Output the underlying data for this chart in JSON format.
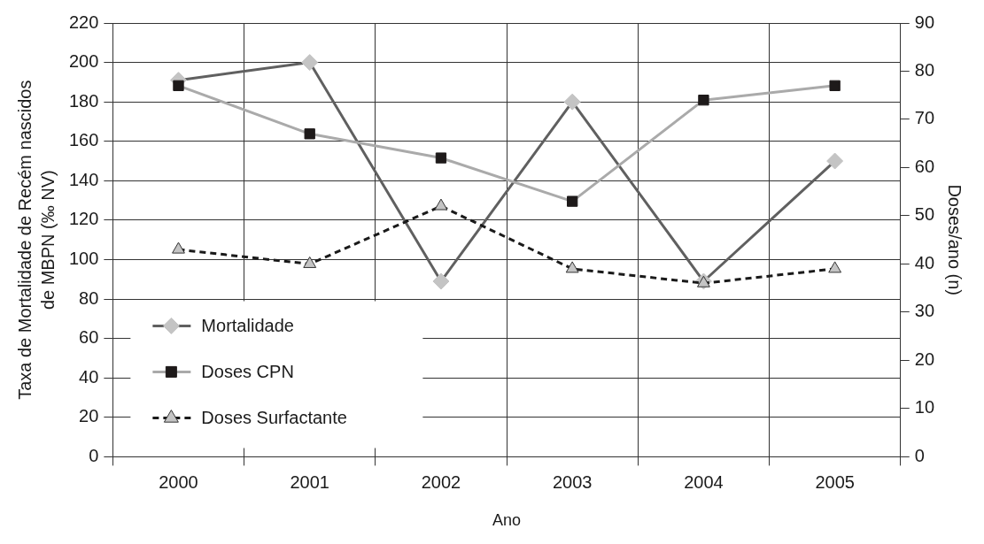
{
  "chart_data": {
    "type": "line",
    "xlabel": "Ano",
    "ylabel": "Taxa de Mortalidade de Recém nascidos\nde MBPN (‰ NV)",
    "y2label": "Doses/ano (n)",
    "categories": [
      "2000",
      "2001",
      "2002",
      "2003",
      "2004",
      "2005"
    ],
    "series": [
      {
        "name": "Mortalidade",
        "color": "#606060",
        "colors": [
          "#c4c4c4",
          "#c4c4c4",
          "#c4c4c4",
          "#c4c4c4",
          "#c4c4c4",
          "#c4c4c4"
        ],
        "marker": "diamond",
        "line_style": "solid",
        "values": [
          191,
          200,
          89,
          180,
          89,
          150
        ]
      },
      {
        "name": "Doses CPN",
        "color": "#aaaaaa",
        "colors": [
          "#1e1a1a",
          "#1e1a1a",
          "#1e1a1a",
          "#1e1a1a",
          "#1e1a1a",
          "#1e1a1a"
        ],
        "marker": "square",
        "line_style": "solid",
        "axis": "y2",
        "values": [
          77,
          67,
          62,
          53,
          74,
          77
        ]
      },
      {
        "name": "Doses Surfactante",
        "color": "#1a1a1a",
        "colors": [
          "#c4c4c4",
          "#c4c4c4",
          "#c4c4c4",
          "#c4c4c4",
          "#c4c4c4",
          "#c4c4c4"
        ],
        "marker": "triangle",
        "line_style": "dashed",
        "axis": "y2",
        "values": [
          43,
          40,
          52,
          39,
          36,
          39
        ]
      }
    ],
    "ylim": [
      0,
      220
    ],
    "yticks": [
      0,
      20,
      40,
      60,
      80,
      100,
      120,
      140,
      160,
      180,
      200,
      220
    ],
    "y2lim": [
      0,
      90
    ],
    "y2ticks": [
      0,
      10,
      20,
      30,
      40,
      50,
      60,
      70,
      80,
      90
    ],
    "grid": true,
    "legend": "bottom left"
  }
}
